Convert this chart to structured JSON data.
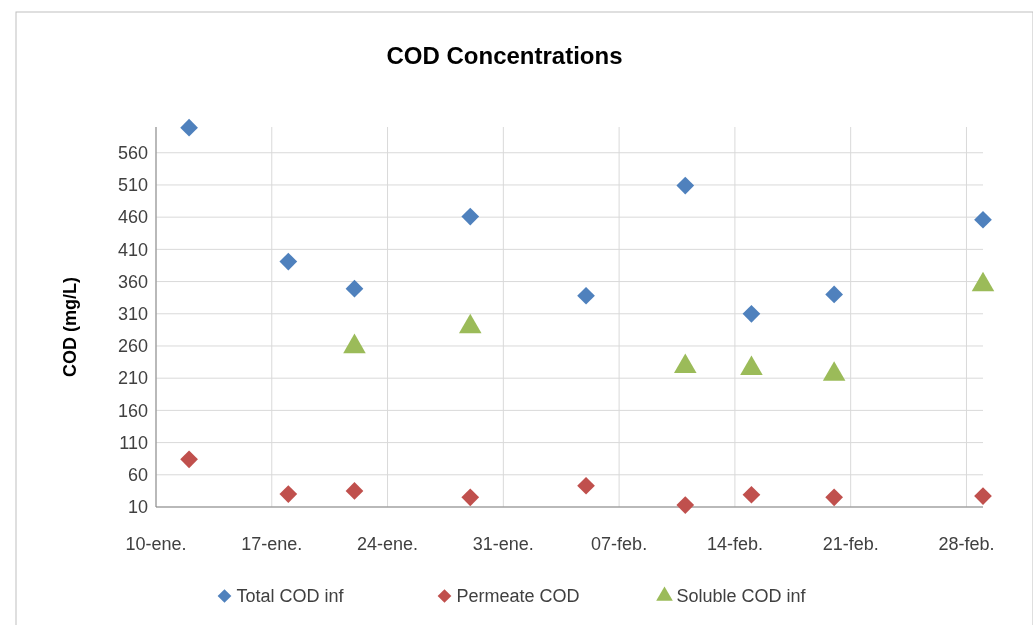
{
  "chart_data": {
    "type": "scatter",
    "title": "COD Concentrations",
    "ylabel": "COD (mg/L)",
    "xlim": [
      "--01-10",
      "--03-01"
    ],
    "xticks": [
      {
        "value": "--01-10",
        "label": "10-ene."
      },
      {
        "value": "--01-17",
        "label": "17-ene."
      },
      {
        "value": "--01-24",
        "label": "24-ene."
      },
      {
        "value": "--01-31",
        "label": "31-ene."
      },
      {
        "value": "--02-07",
        "label": "07-feb."
      },
      {
        "value": "--02-14",
        "label": "14-feb."
      },
      {
        "value": "--02-21",
        "label": "21-feb."
      },
      {
        "value": "--02-28",
        "label": "28-feb."
      }
    ],
    "ylim": [
      10,
      600
    ],
    "yticks": [
      10,
      60,
      110,
      160,
      210,
      260,
      310,
      360,
      410,
      460,
      510,
      560
    ],
    "grid": true,
    "legend": "bottom",
    "series": [
      {
        "name": "Total COD inf",
        "color": "#4f81bd",
        "marker": "diamond",
        "x": [
          "--01-12",
          "--01-18",
          "--01-22",
          "--01-29",
          "--02-05",
          "--02-11",
          "--02-15",
          "--02-20",
          "--03-01"
        ],
        "values": [
          599,
          391,
          349,
          461,
          338,
          509,
          310,
          340,
          456
        ]
      },
      {
        "name": "Permeate COD",
        "color": "#c0504d",
        "marker": "diamond",
        "x": [
          "--01-12",
          "--01-18",
          "--01-22",
          "--01-29",
          "--02-05",
          "--02-11",
          "--02-15",
          "--02-20",
          "--03-01"
        ],
        "values": [
          84,
          30,
          35,
          25,
          43,
          13,
          29,
          25,
          27
        ]
      },
      {
        "name": "Soluble COD inf",
        "color": "#9bbb59",
        "marker": "triangle",
        "x": [
          "--01-22",
          "--01-29",
          "--02-11",
          "--02-15",
          "--02-20",
          "--03-01"
        ],
        "values": [
          259,
          290,
          228,
          225,
          216,
          355
        ]
      }
    ]
  }
}
